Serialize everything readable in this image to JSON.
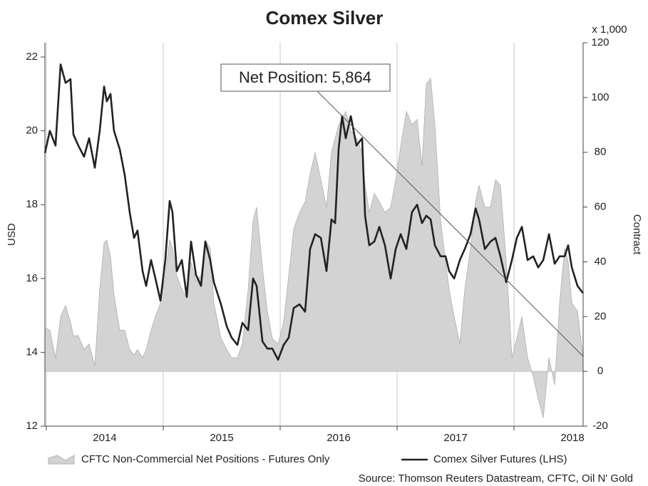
{
  "chart_data": {
    "type": "area-line",
    "title": "Comex Silver",
    "y_label": "USD",
    "y2_label": "Contract",
    "y2_unit": "x 1,000",
    "annotation": "Net Position: 5,864",
    "source": "Source: Thomson Reuters Datastream, CFTC, Oil N' Gold",
    "x": [
      2013.988,
      2014.03,
      2014.079,
      2014.122,
      2014.165,
      2014.207,
      2014.232,
      2014.274,
      2014.323,
      2014.366,
      2014.415,
      2014.457,
      2014.494,
      2014.518,
      2014.549,
      2014.579,
      2014.628,
      2014.671,
      2014.713,
      2014.75,
      2014.78,
      2014.823,
      2014.854,
      2014.896,
      2014.933,
      2014.976,
      2015.018,
      2015.055,
      2015.079,
      2015.116,
      2015.159,
      2015.201,
      2015.238,
      2015.28,
      2015.323,
      2015.36,
      2015.402,
      2015.433,
      2015.494,
      2015.543,
      2015.585,
      2015.634,
      2015.677,
      2015.726,
      2015.768,
      2015.799,
      2015.848,
      2015.89,
      2015.933,
      2015.982,
      2016.03,
      2016.073,
      2016.116,
      2016.165,
      2016.213,
      2016.256,
      2016.299,
      2016.348,
      2016.396,
      2016.439,
      2016.47,
      2016.5,
      2016.53,
      2016.561,
      2016.604,
      2016.652,
      2016.701,
      2016.726,
      2016.762,
      2016.805,
      2016.848,
      2016.896,
      2016.945,
      2016.988,
      2017.03,
      2017.079,
      2017.128,
      2017.171,
      2017.213,
      2017.25,
      2017.287,
      2017.323,
      2017.372,
      2017.415,
      2017.445,
      2017.488,
      2017.537,
      2017.579,
      2017.628,
      2017.671,
      2017.701,
      2017.75,
      2017.799,
      2017.841,
      2017.884,
      2017.933,
      2017.982,
      2018.024,
      2018.067,
      2018.116,
      2018.165,
      2018.207,
      2018.25,
      2018.299,
      2018.348,
      2018.39,
      2018.433,
      2018.463,
      2018.494,
      2018.543,
      2018.591
    ],
    "xlim": [
      2013.988,
      2018.591
    ],
    "xticks": [
      {
        "value": 2014.5,
        "label": "2014"
      },
      {
        "value": 2015.5,
        "label": "2015"
      },
      {
        "value": 2016.5,
        "label": "2016"
      },
      {
        "value": 2017.5,
        "label": "2017"
      },
      {
        "value": 2018.5,
        "label": "2018"
      }
    ],
    "ylim": [
      12,
      22.386
    ],
    "yticks": [
      12,
      14,
      16,
      18,
      20,
      22
    ],
    "y2lim": [
      -20,
      120
    ],
    "y2ticks": [
      -20,
      0,
      20,
      40,
      60,
      80,
      100,
      120
    ],
    "series": [
      {
        "name": "CFTC Non-Commercial Net Positions - Futures Only",
        "color": "#d3d3d3",
        "axis": "y2",
        "values": [
          16,
          15,
          5,
          20,
          24,
          18,
          13,
          13,
          8,
          10,
          2,
          30,
          47,
          48,
          42,
          28,
          15,
          15,
          8,
          6,
          8,
          5,
          8,
          15,
          20,
          25,
          35,
          48,
          45,
          35,
          30,
          27,
          40,
          33,
          35,
          48,
          45,
          25,
          12,
          8,
          5,
          5,
          10,
          30,
          55,
          60,
          38,
          22,
          12,
          10,
          18,
          35,
          52,
          58,
          62,
          72,
          80,
          70,
          60,
          80,
          85,
          90,
          92,
          95,
          88,
          85,
          80,
          68,
          58,
          65,
          62,
          58,
          60,
          70,
          82,
          95,
          90,
          92,
          75,
          105,
          107,
          90,
          55,
          40,
          30,
          20,
          10,
          30,
          45,
          62,
          68,
          60,
          60,
          70,
          68,
          40,
          5,
          12,
          20,
          5,
          -2,
          -10,
          -17,
          5,
          -5,
          25,
          45,
          40,
          25,
          22,
          5
        ]
      },
      {
        "name": "Comex Silver Futures (LHS)",
        "color": "#222222",
        "axis": "y",
        "values": [
          19.4,
          20.0,
          19.6,
          21.8,
          21.3,
          21.4,
          19.9,
          19.6,
          19.3,
          19.8,
          19.0,
          20.0,
          21.2,
          20.8,
          21.0,
          20.0,
          19.5,
          18.8,
          17.8,
          17.1,
          17.3,
          16.2,
          15.8,
          16.5,
          16.0,
          15.4,
          16.5,
          18.1,
          17.8,
          16.2,
          16.5,
          15.5,
          17.0,
          16.1,
          15.8,
          17.0,
          16.5,
          15.9,
          15.3,
          14.7,
          14.4,
          14.2,
          14.8,
          14.6,
          16.0,
          15.8,
          14.3,
          14.1,
          14.1,
          13.8,
          14.2,
          14.4,
          15.2,
          15.3,
          15.1,
          16.8,
          17.2,
          17.1,
          16.2,
          17.6,
          17.5,
          19.5,
          20.4,
          19.8,
          20.4,
          19.6,
          19.8,
          17.7,
          16.9,
          17.0,
          17.4,
          16.9,
          16.0,
          16.8,
          17.2,
          16.8,
          17.8,
          18.0,
          17.5,
          17.7,
          17.6,
          16.9,
          16.6,
          16.6,
          16.2,
          16.0,
          16.5,
          16.8,
          17.2,
          17.9,
          17.6,
          16.8,
          17.0,
          17.1,
          16.6,
          15.9,
          16.5,
          17.1,
          17.4,
          16.5,
          16.6,
          16.3,
          16.5,
          17.2,
          16.4,
          16.6,
          16.6,
          16.9,
          16.3,
          15.8,
          15.6
        ]
      }
    ]
  }
}
